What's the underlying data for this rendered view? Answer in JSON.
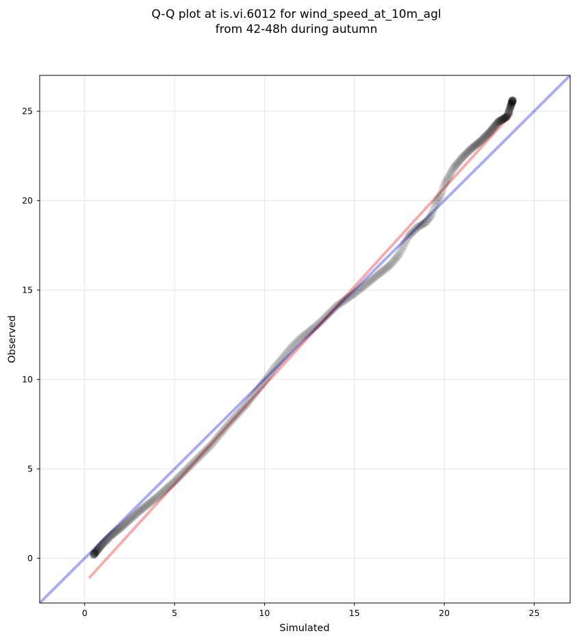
{
  "chart_data": {
    "type": "scatter",
    "title_line1": "Q-Q plot at is.vi.6012 for wind_speed_at_10m_agl",
    "title_line2": "from 42-48h during autumn",
    "xlabel": "Simulated",
    "ylabel": "Observed",
    "xlim": [
      -2.5,
      27
    ],
    "ylim": [
      -2.5,
      27
    ],
    "xticks": [
      0,
      5,
      10,
      15,
      20,
      25
    ],
    "yticks": [
      0,
      5,
      10,
      15,
      20,
      25
    ],
    "grid": true,
    "reference_line": {
      "color": "#0000dd",
      "x": [
        -2.5,
        27
      ],
      "y": [
        -2.5,
        27
      ]
    },
    "fit_line": {
      "color": "#ee0000",
      "x": [
        0.25,
        23.8
      ],
      "y": [
        -1.1,
        24.9
      ]
    },
    "point_color": "#000000",
    "quantile_curve": {
      "x": [
        0.5,
        1,
        1.5,
        2,
        3,
        4,
        5,
        6,
        7,
        8,
        9,
        10,
        10.5,
        11,
        11.5,
        12,
        12.5,
        13,
        13.5,
        14,
        15,
        16,
        17,
        17.5,
        18,
        18.5,
        19,
        19.3,
        19.5,
        19.8,
        20,
        20.5,
        21,
        21.5,
        22,
        22.5,
        23,
        23.5,
        23.8
      ],
      "y": [
        0.2,
        0.8,
        1.3,
        1.7,
        2.6,
        3.4,
        4.3,
        5.3,
        6.3,
        7.5,
        8.6,
        9.9,
        10.6,
        11.2,
        11.8,
        12.3,
        12.7,
        13.1,
        13.6,
        14.1,
        14.8,
        15.6,
        16.4,
        17.0,
        18.0,
        18.5,
        18.8,
        19.2,
        19.8,
        20.3,
        20.9,
        21.8,
        22.4,
        22.9,
        23.3,
        23.8,
        24.4,
        24.7,
        25.6
      ]
    },
    "n_points": 420
  }
}
